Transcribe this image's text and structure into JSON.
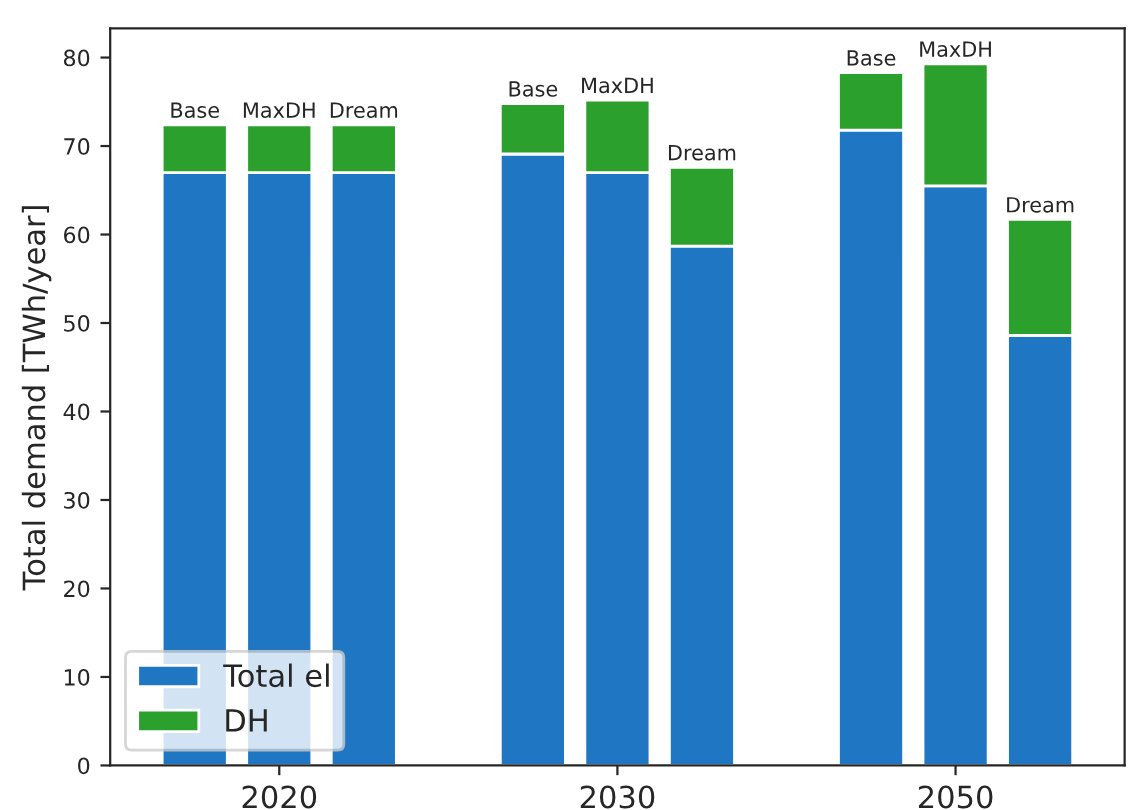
{
  "chart_data": {
    "type": "bar",
    "stacked": true,
    "ylabel": "Total demand [TWh/year]",
    "categories": [
      null,
      "2020",
      null,
      null,
      null,
      "2030",
      null,
      null,
      null,
      "2050",
      null
    ],
    "series": [
      {
        "name": "Total el",
        "color": "#1f77c4",
        "values": [
          67.0,
          67.0,
          67.0,
          null,
          69.1,
          67.0,
          58.7,
          null,
          71.8,
          65.5,
          48.6
        ]
      },
      {
        "name": "DH",
        "color": "#2ca02c",
        "values": [
          5.4,
          5.4,
          5.4,
          null,
          5.7,
          8.2,
          8.9,
          null,
          6.5,
          13.8,
          13.1
        ],
        "value_labels": [
          "Base",
          "MaxDH",
          "Dream",
          null,
          "Base",
          "MaxDH",
          "Dream",
          null,
          "Base",
          "MaxDH",
          "Dream"
        ]
      }
    ],
    "ylim": [
      0,
      83.3
    ],
    "yticks": [
      0,
      10,
      20,
      30,
      40,
      50,
      60,
      70,
      80
    ],
    "legend": "bottom left",
    "grid": false
  }
}
